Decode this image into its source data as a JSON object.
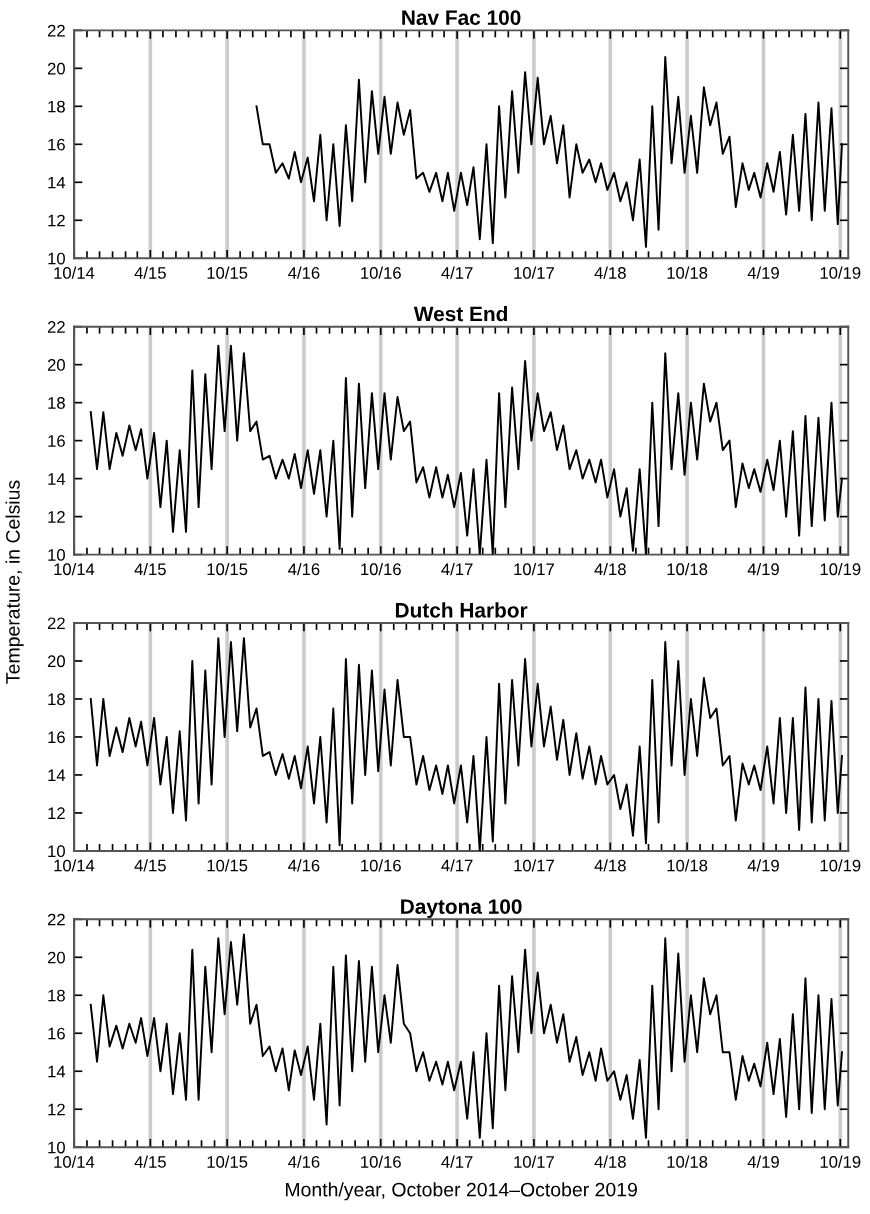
{
  "chart_data": [
    {
      "type": "line",
      "title": "Nav Fac 100",
      "ylim": [
        10,
        22
      ],
      "yticks": [
        10,
        12,
        14,
        16,
        18,
        20,
        22
      ],
      "xlim": [
        "2014-10-01",
        "2019-10-20"
      ],
      "grid": "x",
      "xticks": [
        {
          "value": "2014-10-01",
          "label": "10/14"
        },
        {
          "value": "2014-11-01",
          "label": null
        },
        {
          "value": "2014-12-01",
          "label": null
        },
        {
          "value": "2015-01-01",
          "label": null
        },
        {
          "value": "2015-02-01",
          "label": null
        },
        {
          "value": "2015-03-01",
          "label": null
        },
        {
          "value": "2015-04-01",
          "label": "4/15"
        },
        {
          "value": "2015-05-01",
          "label": null
        },
        {
          "value": "2015-06-01",
          "label": null
        },
        {
          "value": "2015-07-01",
          "label": null
        },
        {
          "value": "2015-08-01",
          "label": null
        },
        {
          "value": "2015-09-01",
          "label": null
        },
        {
          "value": "2015-10-01",
          "label": "10/15"
        },
        {
          "value": "2015-11-01",
          "label": null
        },
        {
          "value": "2015-12-01",
          "label": null
        },
        {
          "value": "2016-01-01",
          "label": null
        },
        {
          "value": "2016-02-01",
          "label": null
        },
        {
          "value": "2016-03-01",
          "label": null
        },
        {
          "value": "2016-04-01",
          "label": "4/16"
        },
        {
          "value": "2016-05-01",
          "label": null
        },
        {
          "value": "2016-06-01",
          "label": null
        },
        {
          "value": "2016-07-01",
          "label": null
        },
        {
          "value": "2016-08-01",
          "label": null
        },
        {
          "value": "2016-09-01",
          "label": null
        },
        {
          "value": "2016-10-01",
          "label": "10/16"
        },
        {
          "value": "2016-11-01",
          "label": null
        },
        {
          "value": "2016-12-01",
          "label": null
        },
        {
          "value": "2017-01-01",
          "label": null
        },
        {
          "value": "2017-02-01",
          "label": null
        },
        {
          "value": "2017-03-01",
          "label": null
        },
        {
          "value": "2017-04-01",
          "label": "4/17"
        },
        {
          "value": "2017-05-01",
          "label": null
        },
        {
          "value": "2017-06-01",
          "label": null
        },
        {
          "value": "2017-07-01",
          "label": null
        },
        {
          "value": "2017-08-01",
          "label": null
        },
        {
          "value": "2017-09-01",
          "label": null
        },
        {
          "value": "2017-10-01",
          "label": "10/17"
        },
        {
          "value": "2017-11-01",
          "label": null
        },
        {
          "value": "2017-12-01",
          "label": null
        },
        {
          "value": "2018-01-01",
          "label": null
        },
        {
          "value": "2018-02-01",
          "label": null
        },
        {
          "value": "2018-03-01",
          "label": null
        },
        {
          "value": "2018-04-01",
          "label": "4/18"
        },
        {
          "value": "2018-05-01",
          "label": null
        },
        {
          "value": "2018-06-01",
          "label": null
        },
        {
          "value": "2018-07-01",
          "label": null
        },
        {
          "value": "2018-08-01",
          "label": null
        },
        {
          "value": "2018-09-01",
          "label": null
        },
        {
          "value": "2018-10-01",
          "label": "10/18"
        },
        {
          "value": "2018-11-01",
          "label": null
        },
        {
          "value": "2018-12-01",
          "label": null
        },
        {
          "value": "2019-01-01",
          "label": null
        },
        {
          "value": "2019-02-01",
          "label": null
        },
        {
          "value": "2019-03-01",
          "label": null
        },
        {
          "value": "2019-04-01",
          "label": "4/19"
        },
        {
          "value": "2019-05-01",
          "label": null
        },
        {
          "value": "2019-06-01",
          "label": null
        },
        {
          "value": "2019-07-01",
          "label": null
        },
        {
          "value": "2019-08-01",
          "label": null
        },
        {
          "value": "2019-09-01",
          "label": null
        },
        {
          "value": "2019-10-01",
          "label": "10/19"
        }
      ],
      "x": [
        "2015-12-10",
        "2015-12-25",
        "2016-01-10",
        "2016-01-25",
        "2016-02-10",
        "2016-02-25",
        "2016-03-10",
        "2016-03-25",
        "2016-04-10",
        "2016-04-25",
        "2016-05-10",
        "2016-05-25",
        "2016-06-10",
        "2016-06-25",
        "2016-07-10",
        "2016-07-25",
        "2016-08-10",
        "2016-08-25",
        "2016-09-10",
        "2016-09-25",
        "2016-10-10",
        "2016-10-25",
        "2016-11-10",
        "2016-11-25",
        "2016-12-10",
        "2016-12-25",
        "2017-01-10",
        "2017-01-25",
        "2017-02-10",
        "2017-02-25",
        "2017-03-10",
        "2017-03-25",
        "2017-04-10",
        "2017-04-25",
        "2017-05-10",
        "2017-05-25",
        "2017-06-10",
        "2017-06-25",
        "2017-07-10",
        "2017-07-25",
        "2017-08-10",
        "2017-08-25",
        "2017-09-10",
        "2017-09-25",
        "2017-10-10",
        "2017-10-25",
        "2017-11-10",
        "2017-11-25",
        "2017-12-10",
        "2017-12-25",
        "2018-01-10",
        "2018-01-25",
        "2018-02-10",
        "2018-02-25",
        "2018-03-10",
        "2018-03-25",
        "2018-04-10",
        "2018-04-25",
        "2018-05-10",
        "2018-05-25",
        "2018-06-10",
        "2018-06-25",
        "2018-07-10",
        "2018-07-25",
        "2018-08-10",
        "2018-08-25",
        "2018-09-10",
        "2018-09-25",
        "2018-10-10",
        "2018-10-25",
        "2018-11-10",
        "2018-11-25",
        "2018-12-10",
        "2018-12-25",
        "2019-01-10",
        "2019-01-25",
        "2019-02-10",
        "2019-02-25",
        "2019-03-10",
        "2019-03-25",
        "2019-04-10",
        "2019-04-25",
        "2019-05-10",
        "2019-05-25",
        "2019-06-10",
        "2019-06-25",
        "2019-07-10",
        "2019-07-25",
        "2019-08-10",
        "2019-08-25",
        "2019-09-10",
        "2019-09-25",
        "2019-10-05"
      ],
      "series": [
        {
          "color": "#000000",
          "values": [
            18,
            16,
            16,
            14.5,
            15,
            14.2,
            15.6,
            14,
            15.3,
            13,
            16.5,
            12,
            16,
            11.7,
            17,
            13,
            19.4,
            14,
            18.8,
            15.5,
            18.5,
            15.5,
            18.2,
            16.5,
            17.8,
            14.2,
            14.5,
            13.5,
            14.5,
            13,
            14.5,
            12.5,
            14.5,
            12.8,
            14.8,
            11,
            16,
            10.8,
            18,
            13.2,
            18.8,
            14.5,
            19.8,
            16,
            19.5,
            16,
            17.5,
            15,
            17,
            13.2,
            16,
            14.5,
            15.2,
            14,
            15,
            13.6,
            14.5,
            13,
            14,
            12,
            15.2,
            10.6,
            18,
            11.5,
            20.6,
            15,
            18.5,
            14.5,
            17.5,
            14.5,
            19,
            17,
            18.2,
            15.5,
            16.4,
            12.7,
            15,
            13.6,
            14.5,
            13.2,
            15,
            13.5,
            15.6,
            12.3,
            16.5,
            12.5,
            17.6,
            12,
            18.2,
            12.5,
            17.9,
            11.8,
            16
          ]
        }
      ]
    },
    {
      "type": "line",
      "title": "West End",
      "ylabel": "Temperature, in Celsius",
      "ylim": [
        10,
        22
      ],
      "yticks": [
        10,
        12,
        14,
        16,
        18,
        20,
        22
      ],
      "xlim": [
        "2014-10-01",
        "2019-10-20"
      ],
      "grid": "x",
      "xticks": [
        {
          "value": "2014-10-01",
          "label": "10/14"
        },
        {
          "value": "2014-11-01",
          "label": null
        },
        {
          "value": "2014-12-01",
          "label": null
        },
        {
          "value": "2015-01-01",
          "label": null
        },
        {
          "value": "2015-02-01",
          "label": null
        },
        {
          "value": "2015-03-01",
          "label": null
        },
        {
          "value": "2015-04-01",
          "label": "4/15"
        },
        {
          "value": "2015-05-01",
          "label": null
        },
        {
          "value": "2015-06-01",
          "label": null
        },
        {
          "value": "2015-07-01",
          "label": null
        },
        {
          "value": "2015-08-01",
          "label": null
        },
        {
          "value": "2015-09-01",
          "label": null
        },
        {
          "value": "2015-10-01",
          "label": "10/15"
        },
        {
          "value": "2015-11-01",
          "label": null
        },
        {
          "value": "2015-12-01",
          "label": null
        },
        {
          "value": "2016-01-01",
          "label": null
        },
        {
          "value": "2016-02-01",
          "label": null
        },
        {
          "value": "2016-03-01",
          "label": null
        },
        {
          "value": "2016-04-01",
          "label": "4/16"
        },
        {
          "value": "2016-05-01",
          "label": null
        },
        {
          "value": "2016-06-01",
          "label": null
        },
        {
          "value": "2016-07-01",
          "label": null
        },
        {
          "value": "2016-08-01",
          "label": null
        },
        {
          "value": "2016-09-01",
          "label": null
        },
        {
          "value": "2016-10-01",
          "label": "10/16"
        },
        {
          "value": "2016-11-01",
          "label": null
        },
        {
          "value": "2016-12-01",
          "label": null
        },
        {
          "value": "2017-01-01",
          "label": null
        },
        {
          "value": "2017-02-01",
          "label": null
        },
        {
          "value": "2017-03-01",
          "label": null
        },
        {
          "value": "2017-04-01",
          "label": "4/17"
        },
        {
          "value": "2017-05-01",
          "label": null
        },
        {
          "value": "2017-06-01",
          "label": null
        },
        {
          "value": "2017-07-01",
          "label": null
        },
        {
          "value": "2017-08-01",
          "label": null
        },
        {
          "value": "2017-09-01",
          "label": null
        },
        {
          "value": "2017-10-01",
          "label": "10/17"
        },
        {
          "value": "2017-11-01",
          "label": null
        },
        {
          "value": "2017-12-01",
          "label": null
        },
        {
          "value": "2018-01-01",
          "label": null
        },
        {
          "value": "2018-02-01",
          "label": null
        },
        {
          "value": "2018-03-01",
          "label": null
        },
        {
          "value": "2018-04-01",
          "label": "4/18"
        },
        {
          "value": "2018-05-01",
          "label": null
        },
        {
          "value": "2018-06-01",
          "label": null
        },
        {
          "value": "2018-07-01",
          "label": null
        },
        {
          "value": "2018-08-01",
          "label": null
        },
        {
          "value": "2018-09-01",
          "label": null
        },
        {
          "value": "2018-10-01",
          "label": "10/18"
        },
        {
          "value": "2018-11-01",
          "label": null
        },
        {
          "value": "2018-12-01",
          "label": null
        },
        {
          "value": "2019-01-01",
          "label": null
        },
        {
          "value": "2019-02-01",
          "label": null
        },
        {
          "value": "2019-03-01",
          "label": null
        },
        {
          "value": "2019-04-01",
          "label": "4/19"
        },
        {
          "value": "2019-05-01",
          "label": null
        },
        {
          "value": "2019-06-01",
          "label": null
        },
        {
          "value": "2019-07-01",
          "label": null
        },
        {
          "value": "2019-08-01",
          "label": null
        },
        {
          "value": "2019-09-01",
          "label": null
        },
        {
          "value": "2019-10-01",
          "label": "10/19"
        }
      ],
      "x": [
        "2014-11-10",
        "2014-11-25",
        "2014-12-10",
        "2014-12-25",
        "2015-01-10",
        "2015-01-25",
        "2015-02-10",
        "2015-02-25",
        "2015-03-10",
        "2015-03-25",
        "2015-04-10",
        "2015-04-25",
        "2015-05-10",
        "2015-05-25",
        "2015-06-10",
        "2015-06-25",
        "2015-07-10",
        "2015-07-25",
        "2015-08-10",
        "2015-08-25",
        "2015-09-10",
        "2015-09-25",
        "2015-10-10",
        "2015-10-25",
        "2015-11-10",
        "2015-11-25",
        "2015-12-10",
        "2015-12-25",
        "2016-01-10",
        "2016-01-25",
        "2016-02-10",
        "2016-02-25",
        "2016-03-10",
        "2016-03-25",
        "2016-04-10",
        "2016-04-25",
        "2016-05-10",
        "2016-05-25",
        "2016-06-10",
        "2016-06-25",
        "2016-07-10",
        "2016-07-25",
        "2016-08-10",
        "2016-08-25",
        "2016-09-10",
        "2016-09-25",
        "2016-10-10",
        "2016-10-25",
        "2016-11-10",
        "2016-11-25",
        "2016-12-10",
        "2016-12-25",
        "2017-01-10",
        "2017-01-25",
        "2017-02-10",
        "2017-02-25",
        "2017-03-10",
        "2017-03-25",
        "2017-04-10",
        "2017-04-25",
        "2017-05-10",
        "2017-05-25",
        "2017-06-10",
        "2017-06-25",
        "2017-07-10",
        "2017-07-25",
        "2017-08-10",
        "2017-08-25",
        "2017-09-10",
        "2017-09-25",
        "2017-10-10",
        "2017-10-25",
        "2017-11-10",
        "2017-11-25",
        "2017-12-10",
        "2017-12-25",
        "2018-01-10",
        "2018-01-25",
        "2018-02-10",
        "2018-02-25",
        "2018-03-10",
        "2018-03-25",
        "2018-04-10",
        "2018-04-25",
        "2018-05-10",
        "2018-05-25",
        "2018-06-10",
        "2018-06-25",
        "2018-07-10",
        "2018-07-25",
        "2018-08-10",
        "2018-08-25",
        "2018-09-10",
        "2018-09-25",
        "2018-10-10",
        "2018-10-25",
        "2018-11-10",
        "2018-11-25",
        "2018-12-10",
        "2018-12-25",
        "2019-01-10",
        "2019-01-25",
        "2019-02-10",
        "2019-02-25",
        "2019-03-10",
        "2019-03-25",
        "2019-04-10",
        "2019-04-25",
        "2019-05-10",
        "2019-05-25",
        "2019-06-10",
        "2019-06-25",
        "2019-07-10",
        "2019-07-25",
        "2019-08-10",
        "2019-08-25",
        "2019-09-10",
        "2019-09-25",
        "2019-10-05"
      ],
      "series": [
        {
          "color": "#000000",
          "values": [
            17.5,
            14.5,
            17.5,
            14.5,
            16.4,
            15.2,
            16.8,
            15.5,
            16.6,
            14,
            16.4,
            12.5,
            16,
            11.2,
            15.5,
            11.2,
            19.7,
            12.5,
            19.5,
            14.5,
            21,
            16.5,
            21,
            16,
            20.6,
            16.5,
            17,
            15,
            15.2,
            14,
            15,
            14,
            15.3,
            13.5,
            15.5,
            13.2,
            15.5,
            12,
            16,
            10.3,
            19.3,
            12,
            19,
            13.5,
            18.5,
            14.5,
            18.5,
            15,
            18.3,
            16.5,
            17,
            13.8,
            14.6,
            13,
            14.6,
            13,
            14.2,
            12.5,
            14.3,
            11,
            14.5,
            10,
            15,
            10,
            18.5,
            12.5,
            18.8,
            14.5,
            20.2,
            16,
            18.5,
            16.5,
            17.5,
            15.5,
            16.8,
            14.5,
            15.5,
            14,
            15,
            13.8,
            15,
            13,
            14.5,
            12,
            13.5,
            10.2,
            14.5,
            10,
            18,
            11.5,
            20.6,
            14.5,
            18.5,
            14.2,
            18,
            15,
            19,
            17,
            18,
            15.5,
            16,
            12.5,
            14.8,
            13.5,
            14.5,
            13.3,
            15,
            13.4,
            16,
            12,
            16.5,
            11,
            17.3,
            11.5,
            17.2,
            11.8,
            18,
            12,
            14
          ]
        }
      ]
    },
    {
      "type": "line",
      "title": "Dutch Harbor",
      "ylim": [
        10,
        22
      ],
      "yticks": [
        10,
        12,
        14,
        16,
        18,
        20,
        22
      ],
      "xlim": [
        "2014-10-01",
        "2019-10-20"
      ],
      "grid": "x",
      "xticks": [
        {
          "value": "2014-10-01",
          "label": "10/14"
        },
        {
          "value": "2014-11-01",
          "label": null
        },
        {
          "value": "2014-12-01",
          "label": null
        },
        {
          "value": "2015-01-01",
          "label": null
        },
        {
          "value": "2015-02-01",
          "label": null
        },
        {
          "value": "2015-03-01",
          "label": null
        },
        {
          "value": "2015-04-01",
          "label": "4/15"
        },
        {
          "value": "2015-05-01",
          "label": null
        },
        {
          "value": "2015-06-01",
          "label": null
        },
        {
          "value": "2015-07-01",
          "label": null
        },
        {
          "value": "2015-08-01",
          "label": null
        },
        {
          "value": "2015-09-01",
          "label": null
        },
        {
          "value": "2015-10-01",
          "label": "10/15"
        },
        {
          "value": "2015-11-01",
          "label": null
        },
        {
          "value": "2015-12-01",
          "label": null
        },
        {
          "value": "2016-01-01",
          "label": null
        },
        {
          "value": "2016-02-01",
          "label": null
        },
        {
          "value": "2016-03-01",
          "label": null
        },
        {
          "value": "2016-04-01",
          "label": "4/16"
        },
        {
          "value": "2016-05-01",
          "label": null
        },
        {
          "value": "2016-06-01",
          "label": null
        },
        {
          "value": "2016-07-01",
          "label": null
        },
        {
          "value": "2016-08-01",
          "label": null
        },
        {
          "value": "2016-09-01",
          "label": null
        },
        {
          "value": "2016-10-01",
          "label": "10/16"
        },
        {
          "value": "2016-11-01",
          "label": null
        },
        {
          "value": "2016-12-01",
          "label": null
        },
        {
          "value": "2017-01-01",
          "label": null
        },
        {
          "value": "2017-02-01",
          "label": null
        },
        {
          "value": "2017-03-01",
          "label": null
        },
        {
          "value": "2017-04-01",
          "label": "4/17"
        },
        {
          "value": "2017-05-01",
          "label": null
        },
        {
          "value": "2017-06-01",
          "label": null
        },
        {
          "value": "2017-07-01",
          "label": null
        },
        {
          "value": "2017-08-01",
          "label": null
        },
        {
          "value": "2017-09-01",
          "label": null
        },
        {
          "value": "2017-10-01",
          "label": "10/17"
        },
        {
          "value": "2017-11-01",
          "label": null
        },
        {
          "value": "2017-12-01",
          "label": null
        },
        {
          "value": "2018-01-01",
          "label": null
        },
        {
          "value": "2018-02-01",
          "label": null
        },
        {
          "value": "2018-03-01",
          "label": null
        },
        {
          "value": "2018-04-01",
          "label": "4/18"
        },
        {
          "value": "2018-05-01",
          "label": null
        },
        {
          "value": "2018-06-01",
          "label": null
        },
        {
          "value": "2018-07-01",
          "label": null
        },
        {
          "value": "2018-08-01",
          "label": null
        },
        {
          "value": "2018-09-01",
          "label": null
        },
        {
          "value": "2018-10-01",
          "label": "10/18"
        },
        {
          "value": "2018-11-01",
          "label": null
        },
        {
          "value": "2018-12-01",
          "label": null
        },
        {
          "value": "2019-01-01",
          "label": null
        },
        {
          "value": "2019-02-01",
          "label": null
        },
        {
          "value": "2019-03-01",
          "label": null
        },
        {
          "value": "2019-04-01",
          "label": "4/19"
        },
        {
          "value": "2019-05-01",
          "label": null
        },
        {
          "value": "2019-06-01",
          "label": null
        },
        {
          "value": "2019-07-01",
          "label": null
        },
        {
          "value": "2019-08-01",
          "label": null
        },
        {
          "value": "2019-09-01",
          "label": null
        },
        {
          "value": "2019-10-01",
          "label": "10/19"
        }
      ],
      "x": [
        "2014-11-10",
        "2014-11-25",
        "2014-12-10",
        "2014-12-25",
        "2015-01-10",
        "2015-01-25",
        "2015-02-10",
        "2015-02-25",
        "2015-03-10",
        "2015-03-25",
        "2015-04-10",
        "2015-04-25",
        "2015-05-10",
        "2015-05-25",
        "2015-06-10",
        "2015-06-25",
        "2015-07-10",
        "2015-07-25",
        "2015-08-10",
        "2015-08-25",
        "2015-09-10",
        "2015-09-25",
        "2015-10-10",
        "2015-10-25",
        "2015-11-10",
        "2015-11-25",
        "2015-12-10",
        "2015-12-25",
        "2016-01-10",
        "2016-01-25",
        "2016-02-10",
        "2016-02-25",
        "2016-03-10",
        "2016-03-25",
        "2016-04-10",
        "2016-04-25",
        "2016-05-10",
        "2016-05-25",
        "2016-06-10",
        "2016-06-25",
        "2016-07-10",
        "2016-07-25",
        "2016-08-10",
        "2016-08-25",
        "2016-09-10",
        "2016-09-25",
        "2016-10-10",
        "2016-10-25",
        "2016-11-10",
        "2016-11-25",
        "2016-12-10",
        "2016-12-25",
        "2017-01-10",
        "2017-01-25",
        "2017-02-10",
        "2017-02-25",
        "2017-03-10",
        "2017-03-25",
        "2017-04-10",
        "2017-04-25",
        "2017-05-10",
        "2017-05-25",
        "2017-06-10",
        "2017-06-25",
        "2017-07-10",
        "2017-07-25",
        "2017-08-10",
        "2017-08-25",
        "2017-09-10",
        "2017-09-25",
        "2017-10-10",
        "2017-10-25",
        "2017-11-10",
        "2017-11-25",
        "2017-12-10",
        "2017-12-25",
        "2018-01-10",
        "2018-01-25",
        "2018-02-10",
        "2018-02-25",
        "2018-03-10",
        "2018-03-25",
        "2018-04-10",
        "2018-04-25",
        "2018-05-10",
        "2018-05-25",
        "2018-06-10",
        "2018-06-25",
        "2018-07-10",
        "2018-07-25",
        "2018-08-10",
        "2018-08-25",
        "2018-09-10",
        "2018-09-25",
        "2018-10-10",
        "2018-10-25",
        "2018-11-10",
        "2018-11-25",
        "2018-12-10",
        "2018-12-25",
        "2019-01-10",
        "2019-01-25",
        "2019-02-10",
        "2019-02-25",
        "2019-03-10",
        "2019-03-25",
        "2019-04-10",
        "2019-04-25",
        "2019-05-10",
        "2019-05-25",
        "2019-06-10",
        "2019-06-25",
        "2019-07-10",
        "2019-07-25",
        "2019-08-10",
        "2019-08-25",
        "2019-09-10",
        "2019-09-25",
        "2019-10-05"
      ],
      "series": [
        {
          "color": "#000000",
          "values": [
            18,
            14.5,
            18,
            15,
            16.5,
            15.2,
            17,
            15.5,
            16.8,
            14.5,
            17,
            13.5,
            16,
            12,
            16.3,
            11.6,
            20,
            12.5,
            19.5,
            13.5,
            21.2,
            16,
            21,
            16.3,
            21.2,
            16.5,
            17.5,
            15,
            15.2,
            14,
            15.1,
            13.8,
            15,
            13.3,
            15.5,
            12.5,
            16,
            11.5,
            17.5,
            10.3,
            20.1,
            12.5,
            19.8,
            14,
            19.5,
            14.2,
            18.5,
            14.5,
            19,
            16,
            16,
            13.5,
            15,
            13.2,
            14.5,
            13,
            14.5,
            12.5,
            14.5,
            11.5,
            15,
            10,
            16,
            10.5,
            18.8,
            12.5,
            19,
            14.5,
            20.1,
            15.5,
            18.8,
            15.5,
            17.6,
            14.8,
            16.9,
            14,
            16.2,
            13.8,
            15.5,
            13.5,
            15,
            13.5,
            14,
            12.2,
            13.5,
            10.8,
            15.5,
            10.4,
            19,
            11.5,
            21,
            14.5,
            20,
            14,
            18,
            15,
            19.1,
            17,
            17.5,
            14.5,
            15,
            11.6,
            14.6,
            13.5,
            14.5,
            13.2,
            15.5,
            12.5,
            17,
            12,
            17,
            11.1,
            18.6,
            11.5,
            18,
            11.6,
            17.9,
            12,
            15
          ]
        }
      ]
    },
    {
      "type": "line",
      "title": "Daytona 100",
      "xlabel": "Month/year, October 2014–October 2019",
      "ylim": [
        10,
        22
      ],
      "yticks": [
        10,
        12,
        14,
        16,
        18,
        20,
        22
      ],
      "xlim": [
        "2014-10-01",
        "2019-10-20"
      ],
      "grid": "x",
      "xticks": [
        {
          "value": "2014-10-01",
          "label": "10/14"
        },
        {
          "value": "2014-11-01",
          "label": null
        },
        {
          "value": "2014-12-01",
          "label": null
        },
        {
          "value": "2015-01-01",
          "label": null
        },
        {
          "value": "2015-02-01",
          "label": null
        },
        {
          "value": "2015-03-01",
          "label": null
        },
        {
          "value": "2015-04-01",
          "label": "4/15"
        },
        {
          "value": "2015-05-01",
          "label": null
        },
        {
          "value": "2015-06-01",
          "label": null
        },
        {
          "value": "2015-07-01",
          "label": null
        },
        {
          "value": "2015-08-01",
          "label": null
        },
        {
          "value": "2015-09-01",
          "label": null
        },
        {
          "value": "2015-10-01",
          "label": "10/15"
        },
        {
          "value": "2015-11-01",
          "label": null
        },
        {
          "value": "2015-12-01",
          "label": null
        },
        {
          "value": "2016-01-01",
          "label": null
        },
        {
          "value": "2016-02-01",
          "label": null
        },
        {
          "value": "2016-03-01",
          "label": null
        },
        {
          "value": "2016-04-01",
          "label": "4/16"
        },
        {
          "value": "2016-05-01",
          "label": null
        },
        {
          "value": "2016-06-01",
          "label": null
        },
        {
          "value": "2016-07-01",
          "label": null
        },
        {
          "value": "2016-08-01",
          "label": null
        },
        {
          "value": "2016-09-01",
          "label": null
        },
        {
          "value": "2016-10-01",
          "label": "10/16"
        },
        {
          "value": "2016-11-01",
          "label": null
        },
        {
          "value": "2016-12-01",
          "label": null
        },
        {
          "value": "2017-01-01",
          "label": null
        },
        {
          "value": "2017-02-01",
          "label": null
        },
        {
          "value": "2017-03-01",
          "label": null
        },
        {
          "value": "2017-04-01",
          "label": "4/17"
        },
        {
          "value": "2017-05-01",
          "label": null
        },
        {
          "value": "2017-06-01",
          "label": null
        },
        {
          "value": "2017-07-01",
          "label": null
        },
        {
          "value": "2017-08-01",
          "label": null
        },
        {
          "value": "2017-09-01",
          "label": null
        },
        {
          "value": "2017-10-01",
          "label": "10/17"
        },
        {
          "value": "2017-11-01",
          "label": null
        },
        {
          "value": "2017-12-01",
          "label": null
        },
        {
          "value": "2018-01-01",
          "label": null
        },
        {
          "value": "2018-02-01",
          "label": null
        },
        {
          "value": "2018-03-01",
          "label": null
        },
        {
          "value": "2018-04-01",
          "label": "4/18"
        },
        {
          "value": "2018-05-01",
          "label": null
        },
        {
          "value": "2018-06-01",
          "label": null
        },
        {
          "value": "2018-07-01",
          "label": null
        },
        {
          "value": "2018-08-01",
          "label": null
        },
        {
          "value": "2018-09-01",
          "label": null
        },
        {
          "value": "2018-10-01",
          "label": "10/18"
        },
        {
          "value": "2018-11-01",
          "label": null
        },
        {
          "value": "2018-12-01",
          "label": null
        },
        {
          "value": "2019-01-01",
          "label": null
        },
        {
          "value": "2019-02-01",
          "label": null
        },
        {
          "value": "2019-03-01",
          "label": null
        },
        {
          "value": "2019-04-01",
          "label": "4/19"
        },
        {
          "value": "2019-05-01",
          "label": null
        },
        {
          "value": "2019-06-01",
          "label": null
        },
        {
          "value": "2019-07-01",
          "label": null
        },
        {
          "value": "2019-08-01",
          "label": null
        },
        {
          "value": "2019-09-01",
          "label": null
        },
        {
          "value": "2019-10-01",
          "label": "10/19"
        }
      ],
      "x": [
        "2014-11-10",
        "2014-11-25",
        "2014-12-10",
        "2014-12-25",
        "2015-01-10",
        "2015-01-25",
        "2015-02-10",
        "2015-02-25",
        "2015-03-10",
        "2015-03-25",
        "2015-04-10",
        "2015-04-25",
        "2015-05-10",
        "2015-05-25",
        "2015-06-10",
        "2015-06-25",
        "2015-07-10",
        "2015-07-25",
        "2015-08-10",
        "2015-08-25",
        "2015-09-10",
        "2015-09-25",
        "2015-10-10",
        "2015-10-25",
        "2015-11-10",
        "2015-11-25",
        "2015-12-10",
        "2015-12-25",
        "2016-01-10",
        "2016-01-25",
        "2016-02-10",
        "2016-02-25",
        "2016-03-10",
        "2016-03-25",
        "2016-04-10",
        "2016-04-25",
        "2016-05-10",
        "2016-05-25",
        "2016-06-10",
        "2016-06-25",
        "2016-07-10",
        "2016-07-25",
        "2016-08-10",
        "2016-08-25",
        "2016-09-10",
        "2016-09-25",
        "2016-10-10",
        "2016-10-25",
        "2016-11-10",
        "2016-11-25",
        "2016-12-10",
        "2016-12-25",
        "2017-01-10",
        "2017-01-25",
        "2017-02-10",
        "2017-02-25",
        "2017-03-10",
        "2017-03-25",
        "2017-04-10",
        "2017-04-25",
        "2017-05-10",
        "2017-05-25",
        "2017-06-10",
        "2017-06-25",
        "2017-07-10",
        "2017-07-25",
        "2017-08-10",
        "2017-08-25",
        "2017-09-10",
        "2017-09-25",
        "2017-10-10",
        "2017-10-25",
        "2017-11-10",
        "2017-11-25",
        "2017-12-10",
        "2017-12-25",
        "2018-01-10",
        "2018-01-25",
        "2018-02-10",
        "2018-02-25",
        "2018-03-10",
        "2018-03-25",
        "2018-04-10",
        "2018-04-25",
        "2018-05-10",
        "2018-05-25",
        "2018-06-10",
        "2018-06-25",
        "2018-07-10",
        "2018-07-25",
        "2018-08-10",
        "2018-08-25",
        "2018-09-10",
        "2018-09-25",
        "2018-10-10",
        "2018-10-25",
        "2018-11-10",
        "2018-11-25",
        "2018-12-10",
        "2018-12-25",
        "2019-01-10",
        "2019-01-25",
        "2019-02-10",
        "2019-02-25",
        "2019-03-10",
        "2019-03-25",
        "2019-04-10",
        "2019-04-25",
        "2019-05-10",
        "2019-05-25",
        "2019-06-10",
        "2019-06-25",
        "2019-07-10",
        "2019-07-25",
        "2019-08-10",
        "2019-08-25",
        "2019-09-10",
        "2019-09-25",
        "2019-10-05"
      ],
      "series": [
        {
          "color": "#000000",
          "values": [
            17.5,
            14.5,
            18,
            15.3,
            16.4,
            15.2,
            16.5,
            15.5,
            16.8,
            14.8,
            16.8,
            14,
            16.5,
            12.8,
            16,
            12.5,
            20.4,
            12.5,
            19.5,
            15,
            21,
            17,
            20.8,
            17.5,
            21.2,
            16.5,
            17.5,
            14.8,
            15.3,
            14,
            15.2,
            13,
            15.1,
            13.8,
            15.3,
            12.5,
            16.5,
            11.2,
            19.5,
            12.2,
            20.1,
            14,
            19.8,
            14.5,
            19.5,
            15,
            18,
            15.5,
            19.6,
            16.5,
            16,
            14,
            15,
            13.5,
            14.5,
            13.3,
            14.5,
            13,
            14.5,
            11.5,
            15,
            10.5,
            16,
            11,
            18.5,
            13,
            19,
            15,
            20.4,
            16,
            19.2,
            16,
            17.5,
            15.5,
            17,
            14.5,
            15.8,
            13.8,
            15,
            13.5,
            15.2,
            13.5,
            14,
            12.5,
            13.8,
            11.5,
            14.6,
            10.5,
            18.5,
            12,
            21,
            14,
            20.2,
            14.5,
            18,
            15,
            18.9,
            17,
            18,
            15,
            15,
            12.5,
            14.8,
            13.5,
            14.4,
            13.2,
            15.5,
            12.8,
            15.7,
            11.6,
            17,
            12,
            18.9,
            11.8,
            18,
            12,
            17.8,
            12.2,
            15
          ]
        }
      ]
    }
  ]
}
